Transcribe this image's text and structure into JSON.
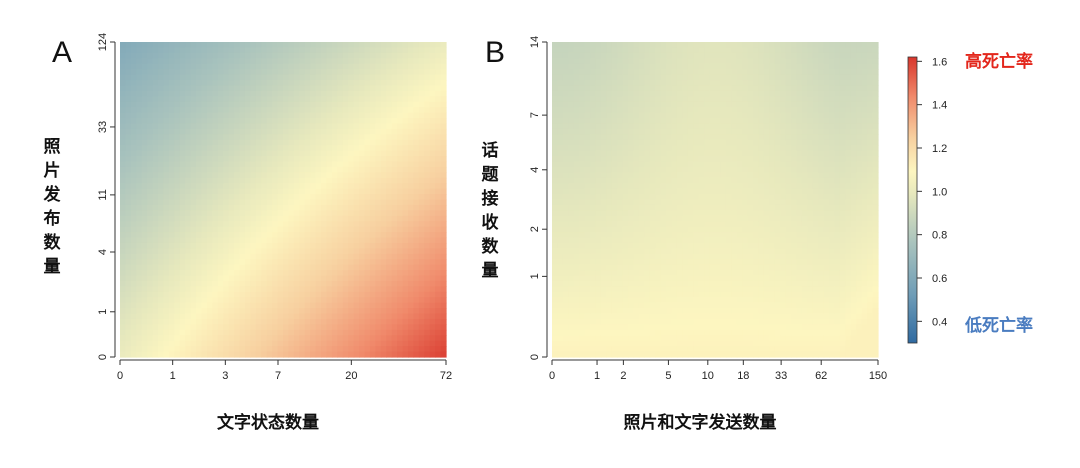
{
  "chart_data": [
    {
      "type": "heatmap",
      "panel": "A",
      "xlabel": "文字状态数量",
      "ylabel": "照片发布数量",
      "x_ticks": [
        "0",
        "1",
        "3",
        "7",
        "20",
        "72"
      ],
      "y_ticks": [
        "0",
        "1",
        "4",
        "11",
        "33",
        "124"
      ],
      "xlim": [
        0,
        72
      ],
      "ylim": [
        0,
        124
      ],
      "scale": "log1p",
      "corner_values": {
        "x0_y0": 1.0,
        "x72_y0": 1.6,
        "x0_y124": 0.6,
        "x72_y124": 1.0
      }
    },
    {
      "type": "heatmap",
      "panel": "B",
      "xlabel": "照片和文字发送数量",
      "ylabel": "话题接收数量",
      "x_ticks": [
        "0",
        "1",
        "2",
        "5",
        "10",
        "18",
        "33",
        "62",
        "150"
      ],
      "y_ticks": [
        "0",
        "1",
        "2",
        "4",
        "7",
        "14"
      ],
      "xlim": [
        0,
        150
      ],
      "ylim": [
        0,
        14
      ],
      "scale": "log1p",
      "value_range": [
        0.85,
        1.1
      ]
    }
  ],
  "colorbar": {
    "ticks": [
      "0.4",
      "0.6",
      "0.8",
      "1.0",
      "1.2",
      "1.4",
      "1.6"
    ],
    "range": [
      0.3,
      1.62
    ],
    "high_label": "高死亡率",
    "low_label": "低死亡率",
    "high_color": "#e3261b",
    "low_color": "#4a7cc0"
  }
}
